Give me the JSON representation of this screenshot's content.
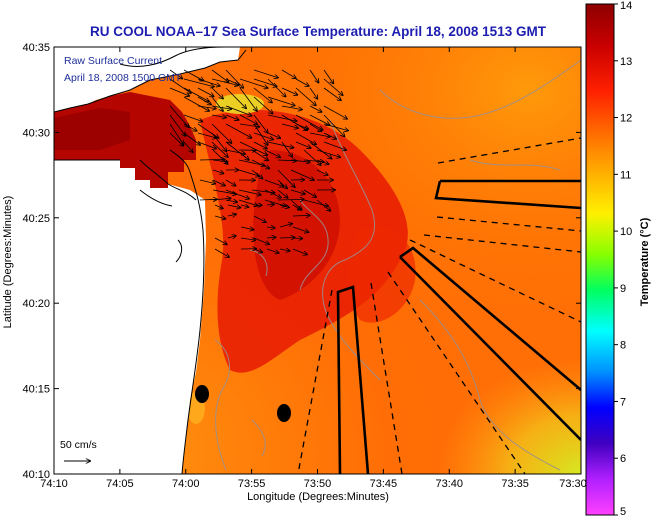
{
  "title": "RU COOL  NOAA–17  Sea Surface Temperature:  April 18, 2008 1513 GMT",
  "overlay": {
    "line1": "Raw Surface Current",
    "line2": "April 18, 2008 1500 GMT"
  },
  "scale_vector_label": "50 cm/s",
  "axes": {
    "xlabel": "Longitude (Degrees:Minutes)",
    "ylabel": "Latitude (Degrees:Minutes)",
    "x_ticks": [
      "74:10",
      "74:05",
      "74:00",
      "73:55",
      "73:50",
      "73:45",
      "73:40",
      "73:35",
      "73:30"
    ],
    "y_ticks": [
      "40:35",
      "40:30",
      "40:25",
      "40:20",
      "40:15",
      "40:10"
    ]
  },
  "colorbar": {
    "label": "Temperature (°C)",
    "ticks": [
      "14",
      "13",
      "12",
      "11",
      "10",
      "9",
      "8",
      "7",
      "6",
      "5"
    ],
    "min": 5,
    "max": 14
  },
  "colors": {
    "title": "#1d1db0",
    "overlay_text": "#1f2f9a"
  }
}
